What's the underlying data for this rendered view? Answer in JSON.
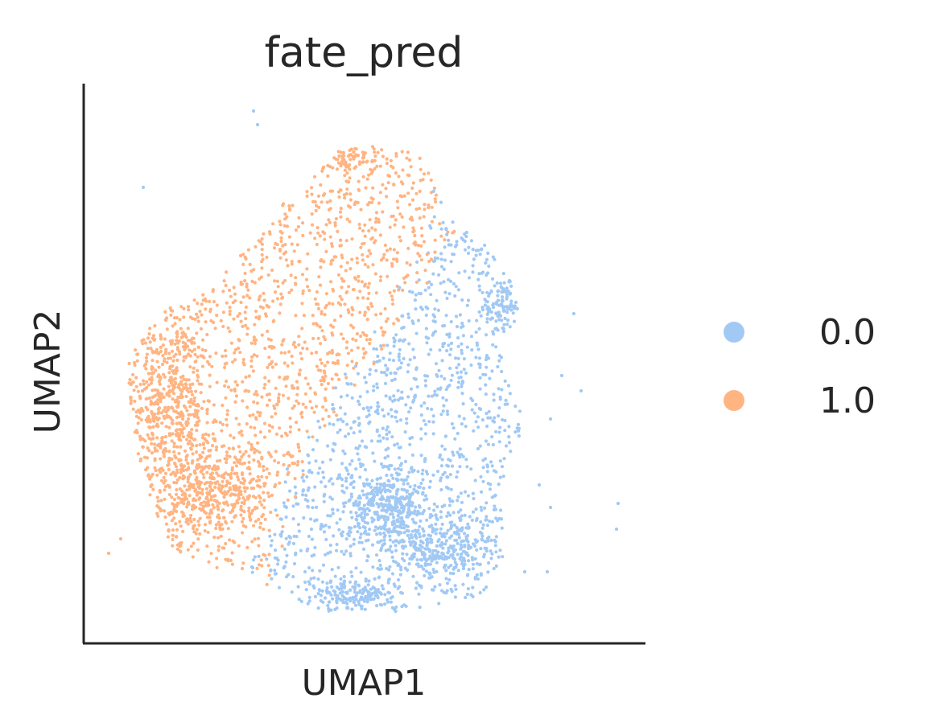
{
  "chart_data": {
    "type": "scatter",
    "title": "fate_pred",
    "xlabel": "UMAP1",
    "ylabel": "UMAP2",
    "xticks": [],
    "yticks": [],
    "grid": false,
    "legend_position": "right",
    "series": [
      {
        "name": "0.0",
        "color": "#a1c9f4"
      },
      {
        "name": "1.0",
        "color": "#ffb482"
      }
    ]
  }
}
